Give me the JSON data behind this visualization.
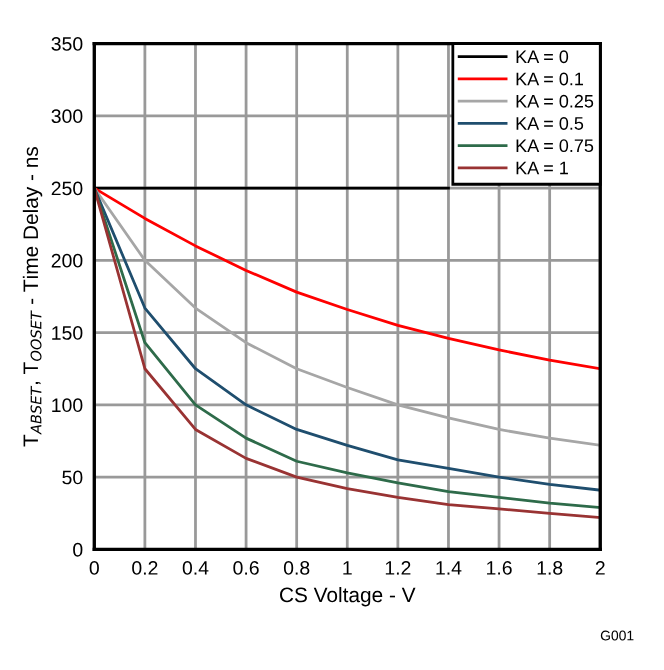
{
  "chart_data": {
    "type": "line",
    "xlabel": "CS Voltage - V",
    "ylabel": "T$_{ABSET}$, T$_{OOSET}$ - Time Delay - ns",
    "x": [
      0,
      0.2,
      0.4,
      0.6,
      0.8,
      1.0,
      1.2,
      1.4,
      1.6,
      1.8,
      2.0
    ],
    "series": [
      {
        "name": "KA = 0",
        "color": "#000000",
        "values": [
          250,
          250,
          250,
          250,
          250,
          250,
          250,
          250,
          null,
          null,
          null
        ]
      },
      {
        "name": "KA = 0.1",
        "color": "#ff0000",
        "values": [
          250,
          229,
          210,
          193,
          178,
          166,
          155,
          146,
          138,
          131,
          125
        ]
      },
      {
        "name": "KA = 0.25",
        "color": "#a6a6a6",
        "values": [
          250,
          200,
          167,
          143,
          125,
          112,
          100,
          91,
          83,
          77,
          72
        ]
      },
      {
        "name": "KA = 0.5",
        "color": "#1f4e6e",
        "values": [
          250,
          167,
          125,
          100,
          83,
          72,
          62,
          56,
          50,
          45,
          41
        ]
      },
      {
        "name": "KA = 0.75",
        "color": "#2e6b4a",
        "values": [
          250,
          143,
          100,
          77,
          61,
          53,
          46,
          40,
          36,
          32,
          29
        ]
      },
      {
        "name": "KA = 1",
        "color": "#993333",
        "values": [
          250,
          125,
          83,
          63,
          50,
          42,
          36,
          31,
          28,
          25,
          22
        ]
      }
    ],
    "xlim": [
      0,
      2
    ],
    "xticks": [
      0,
      0.2,
      0.4,
      0.6,
      0.8,
      1,
      1.2,
      1.4,
      1.6,
      1.8,
      2
    ],
    "ylim": [
      0,
      350
    ],
    "yticks": [
      0,
      50,
      100,
      150,
      200,
      250,
      300,
      350
    ],
    "grid": true,
    "legend": "top right",
    "marker": "none",
    "line_style": "solid",
    "annotations": [
      "G001"
    ]
  }
}
